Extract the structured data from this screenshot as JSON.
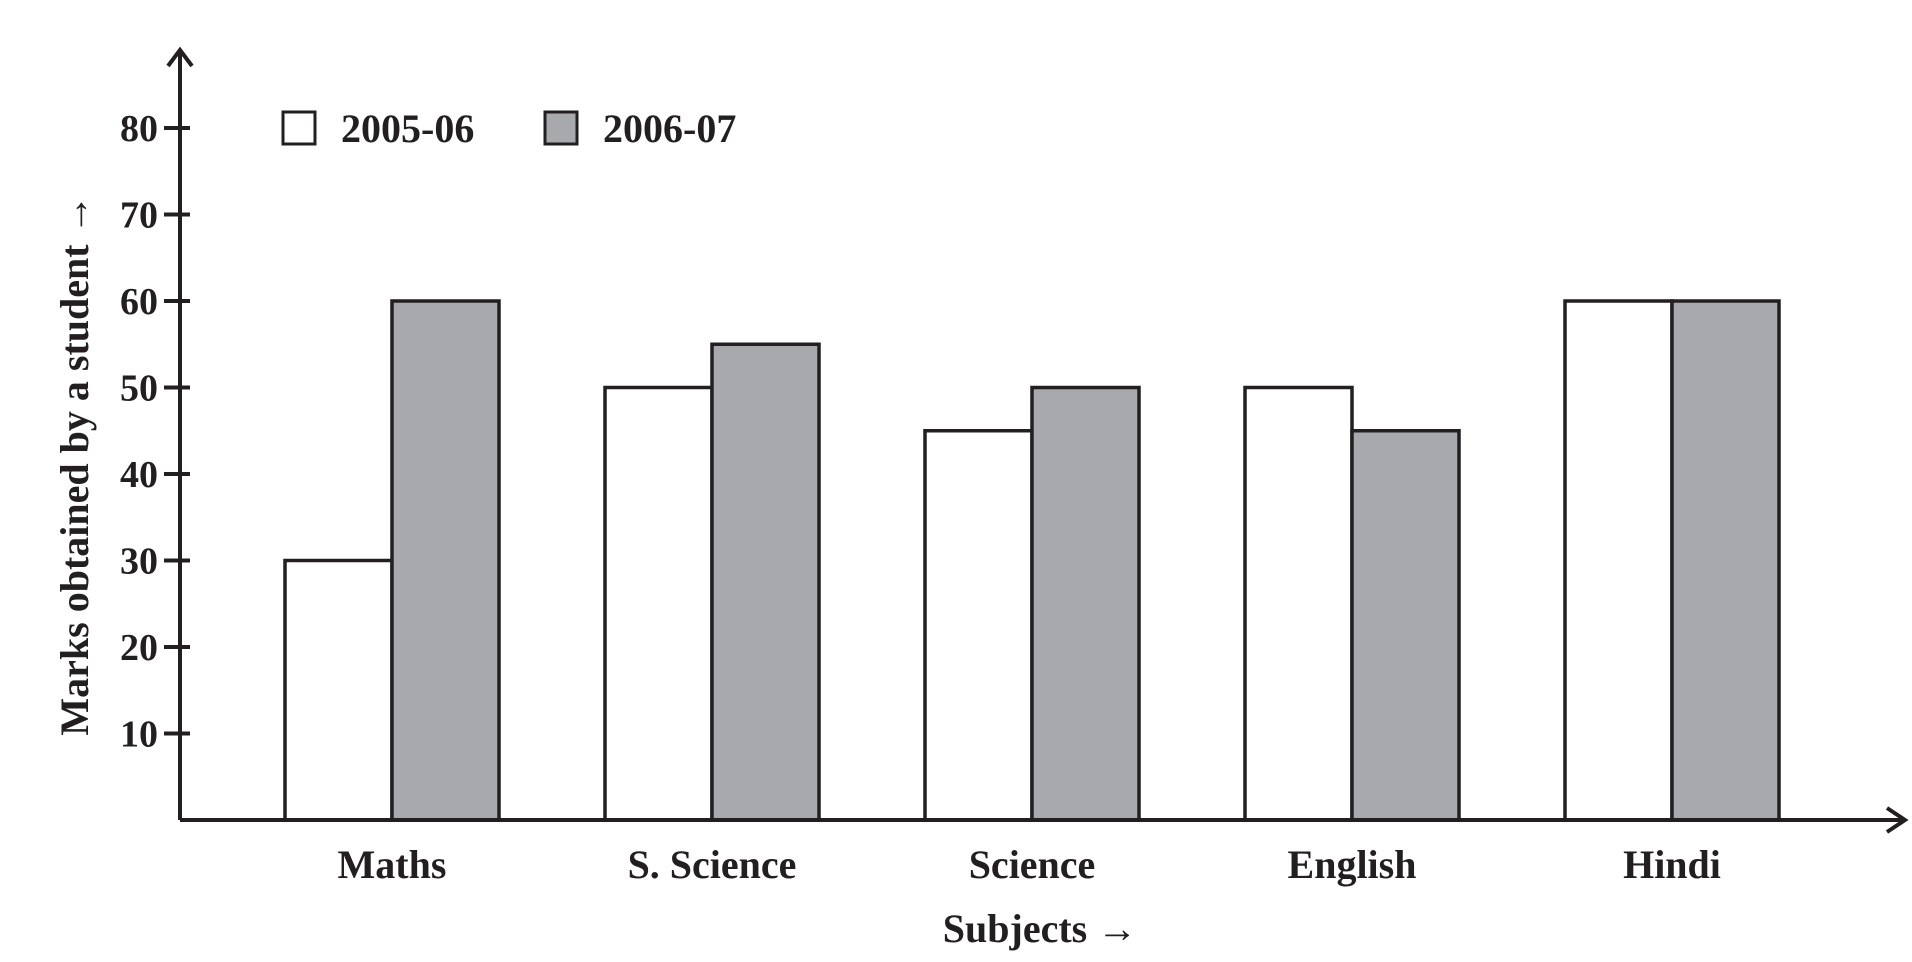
{
  "chart_data": {
    "type": "bar",
    "xlabel": "Subjects →",
    "ylabel": "Marks obtained by a student →",
    "categories": [
      "Maths",
      "S. Science",
      "Science",
      "English",
      "Hindi"
    ],
    "series": [
      {
        "name": "2005-06",
        "values": [
          30,
          50,
          45,
          50,
          60
        ],
        "color": "#ffffff"
      },
      {
        "name": "2006-07",
        "values": [
          60,
          55,
          50,
          45,
          60
        ],
        "color": "#a7a9ac"
      }
    ],
    "yticks": [
      10,
      20,
      30,
      40,
      50,
      60,
      70,
      80
    ],
    "ylim": [
      0,
      80
    ],
    "legend_position": "top-left",
    "grid": false,
    "axis_color": "#231f20"
  }
}
